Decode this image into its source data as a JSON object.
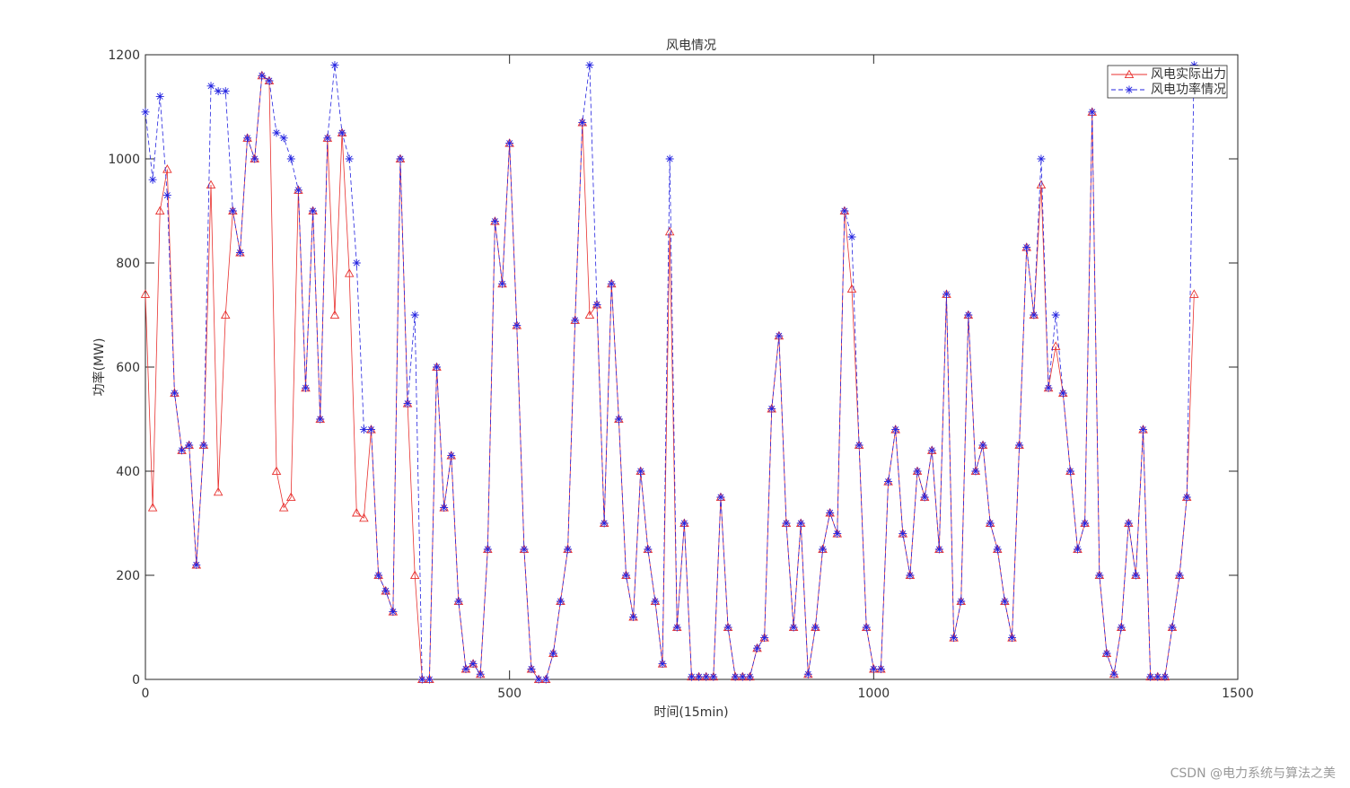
{
  "chart_data": {
    "type": "line",
    "title": "风电情况",
    "x_label": "时间(15min)",
    "y_label": "功率(MW)",
    "x": [
      0,
      10,
      20,
      30,
      40,
      50,
      60,
      70,
      80,
      90,
      100,
      110,
      120,
      130,
      140,
      150,
      160,
      170,
      180,
      190,
      200,
      210,
      220,
      230,
      240,
      250,
      260,
      270,
      280,
      290,
      300,
      310,
      320,
      330,
      340,
      350,
      360,
      370,
      380,
      390,
      400,
      410,
      420,
      430,
      440,
      450,
      460,
      470,
      480,
      490,
      500,
      510,
      520,
      530,
      540,
      550,
      560,
      570,
      580,
      590,
      600,
      610,
      620,
      630,
      640,
      650,
      660,
      670,
      680,
      690,
      700,
      710,
      720,
      730,
      740,
      750,
      760,
      770,
      780,
      790,
      800,
      810,
      820,
      830,
      840,
      850,
      860,
      870,
      880,
      890,
      900,
      910,
      920,
      930,
      940,
      950,
      960,
      970,
      980,
      990,
      1000,
      1010,
      1020,
      1030,
      1040,
      1050,
      1060,
      1070,
      1080,
      1090,
      1100,
      1110,
      1120,
      1130,
      1140,
      1150,
      1160,
      1170,
      1180,
      1190,
      1200,
      1210,
      1220,
      1230,
      1240,
      1250,
      1260,
      1270,
      1280,
      1290,
      1300,
      1310,
      1320,
      1330,
      1340,
      1350,
      1360,
      1370,
      1380,
      1390,
      1400,
      1410,
      1420,
      1430,
      1440
    ],
    "series": [
      {
        "name": "风电实际出力",
        "color": "#e8312f",
        "marker": "triangle",
        "dashed": false,
        "values": [
          740,
          330,
          900,
          980,
          550,
          440,
          450,
          220,
          450,
          950,
          360,
          700,
          900,
          820,
          1040,
          1000,
          1160,
          1150,
          400,
          330,
          350,
          940,
          560,
          900,
          500,
          1040,
          700,
          1050,
          780,
          320,
          310,
          480,
          200,
          170,
          130,
          1000,
          530,
          200,
          0,
          0,
          600,
          330,
          430,
          150,
          20,
          30,
          10,
          250,
          880,
          760,
          1030,
          680,
          250,
          20,
          0,
          0,
          50,
          150,
          250,
          690,
          1070,
          700,
          720,
          300,
          760,
          500,
          200,
          120,
          400,
          250,
          150,
          30,
          860,
          100,
          300,
          5,
          5,
          5,
          5,
          350,
          100,
          5,
          5,
          5,
          60,
          80,
          520,
          660,
          300,
          100,
          300,
          10,
          100,
          250,
          320,
          280,
          900,
          750,
          450,
          100,
          20,
          20,
          380,
          480,
          280,
          200,
          400,
          350,
          440,
          250,
          740,
          80,
          150,
          700,
          400,
          450,
          300,
          250,
          150,
          80,
          450,
          830,
          700,
          950,
          560,
          640,
          550,
          400,
          250,
          300,
          1090,
          200,
          50,
          10,
          100,
          300,
          200,
          480,
          5,
          5,
          5,
          100,
          200,
          350,
          740
        ]
      },
      {
        "name": "风电功率情况",
        "color": "#2323e0",
        "marker": "asterisk",
        "dashed": true,
        "values": [
          1090,
          960,
          1120,
          930,
          550,
          440,
          450,
          220,
          450,
          1140,
          1130,
          1130,
          900,
          820,
          1040,
          1000,
          1160,
          1150,
          1050,
          1040,
          1000,
          940,
          560,
          900,
          500,
          1040,
          1180,
          1050,
          1000,
          800,
          480,
          480,
          200,
          170,
          130,
          1000,
          530,
          700,
          0,
          0,
          600,
          330,
          430,
          150,
          20,
          30,
          10,
          250,
          880,
          760,
          1030,
          680,
          250,
          20,
          0,
          0,
          50,
          150,
          250,
          690,
          1070,
          1180,
          720,
          300,
          760,
          500,
          200,
          120,
          400,
          250,
          150,
          30,
          1000,
          100,
          300,
          5,
          5,
          5,
          5,
          350,
          100,
          5,
          5,
          5,
          60,
          80,
          520,
          660,
          300,
          100,
          300,
          10,
          100,
          250,
          320,
          280,
          900,
          850,
          450,
          100,
          20,
          20,
          380,
          480,
          280,
          200,
          400,
          350,
          440,
          250,
          740,
          80,
          150,
          700,
          400,
          450,
          300,
          250,
          150,
          80,
          450,
          830,
          700,
          1000,
          560,
          700,
          550,
          400,
          250,
          300,
          1090,
          200,
          50,
          10,
          100,
          300,
          200,
          480,
          5,
          5,
          5,
          100,
          200,
          350,
          1180
        ]
      }
    ],
    "xlim": [
      0,
      1500
    ],
    "xticks": [
      0,
      500,
      1000,
      1500
    ],
    "ylim": [
      0,
      1200
    ],
    "yticks": [
      0,
      200,
      400,
      600,
      800,
      1000,
      1200
    ],
    "grid": false,
    "legend": "top-right"
  },
  "watermark": "CSDN @电力系统与算法之美"
}
